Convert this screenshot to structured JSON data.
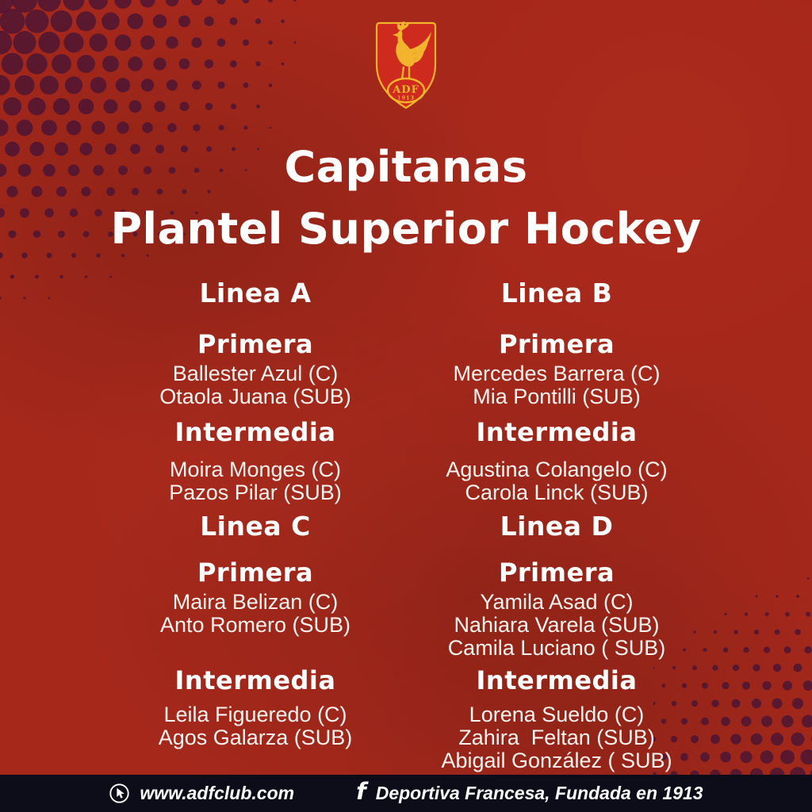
{
  "logo": {
    "club_abbr": "ADF",
    "founded_year": "1913",
    "icon": "rooster-crest-icon"
  },
  "title": {
    "line1": "Capitanas",
    "line2": "Plantel Superior Hockey"
  },
  "lineas": [
    {
      "name": "Linea A",
      "groups": [
        {
          "heading": "Primera",
          "players": [
            "Ballester Azul (C)",
            "Otaola Juana (SUB)"
          ]
        },
        {
          "heading": "Intermedia",
          "players": [
            "Moira Monges (C)",
            "Pazos Pilar (SUB)"
          ]
        }
      ]
    },
    {
      "name": "Linea B",
      "groups": [
        {
          "heading": "Primera",
          "players": [
            "Mercedes Barrera (C)",
            "Mia Pontilli (SUB)"
          ]
        },
        {
          "heading": "Intermedia",
          "players": [
            "Agustina Colangelo (C)",
            "Carola Linck (SUB)"
          ]
        }
      ]
    },
    {
      "name": "Linea C",
      "groups": [
        {
          "heading": "Primera",
          "players": [
            "Maira Belizan (C)",
            "Anto Romero (SUB)"
          ]
        },
        {
          "heading": "Intermedia",
          "players": [
            "Leila Figueredo (C)",
            "Agos Galarza (SUB)"
          ]
        }
      ]
    },
    {
      "name": "Linea D",
      "groups": [
        {
          "heading": "Primera",
          "players": [
            "Yamila Asad (C)",
            "Nahiara Varela (SUB)",
            "Camila Luciano ( SUB)"
          ]
        },
        {
          "heading": "Intermedia",
          "players": [
            "Lorena Sueldo (C)",
            "Zahira  Feltan (SUB)",
            "Abigail González ( SUB)"
          ]
        }
      ]
    }
  ],
  "footer": {
    "website": "www.adfclub.com",
    "website_icon": "cursor-pointer-icon",
    "facebook_icon": "facebook-icon",
    "facebook_text": "Deportiva Francesa, Fundada en 1913"
  },
  "colors": {
    "background_red": "#A5281B",
    "shield_red": "#CE2A1E",
    "gold": "#F2B42C",
    "footer_bg": "#0C0D18",
    "halftone_dot": "#4A1535",
    "text_white": "#FFFFFF"
  }
}
